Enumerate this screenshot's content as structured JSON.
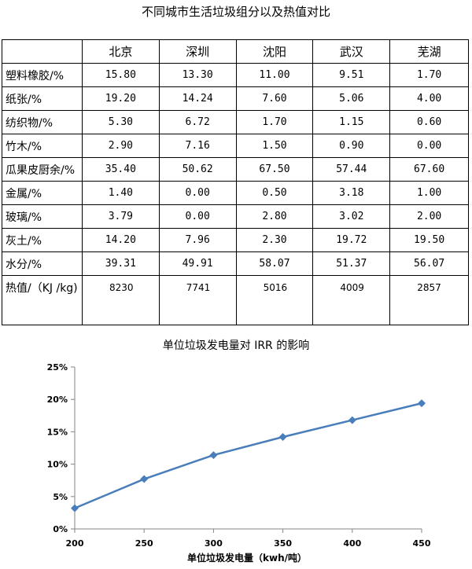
{
  "table": {
    "title": "不同城市生活垃圾组分以及热值对比",
    "headers": [
      "",
      "北京",
      "深圳",
      "沈阳",
      "武汉",
      "芜湖"
    ],
    "rows": [
      {
        "label": "塑料橡胶/%",
        "values": [
          "15.80",
          "13.30",
          "11.00",
          "9.51",
          "1.70"
        ]
      },
      {
        "label": "纸张/%",
        "values": [
          "19.20",
          "14.24",
          "7.60",
          "5.06",
          "4.00"
        ]
      },
      {
        "label": "纺织物/%",
        "values": [
          "5.30",
          "6.72",
          "1.70",
          "1.15",
          "0.60"
        ]
      },
      {
        "label": "竹木/%",
        "values": [
          "2.90",
          "7.16",
          "1.50",
          "0.90",
          "0.00"
        ]
      },
      {
        "label": "瓜果皮厨余/%",
        "values": [
          "35.40",
          "50.62",
          "67.50",
          "57.44",
          "67.60"
        ]
      },
      {
        "label": "金属/%",
        "values": [
          "1.40",
          "0.00",
          "0.50",
          "3.18",
          "1.00"
        ]
      },
      {
        "label": "玻璃/%",
        "values": [
          "3.79",
          "0.00",
          "2.80",
          "3.02",
          "2.00"
        ]
      },
      {
        "label": "灰土/%",
        "values": [
          "14.20",
          "7.96",
          "2.30",
          "19.72",
          "19.50"
        ]
      },
      {
        "label": "水分/%",
        "values": [
          "39.31",
          "49.91",
          "58.07",
          "51.37",
          "56.07"
        ]
      },
      {
        "label": "热值/（KJ /kg)",
        "values": [
          "8230",
          "7741",
          "5016",
          "4009",
          "2857"
        ]
      }
    ]
  },
  "chart_data": {
    "type": "line",
    "title": "单位垃圾发电量对 IRR 的影响",
    "xlabel": "单位垃圾发电量（kwh/吨）",
    "ylabel": "",
    "x": [
      200,
      250,
      300,
      350,
      400,
      450
    ],
    "xticks": [
      "200",
      "250",
      "300",
      "350",
      "400",
      "450"
    ],
    "yticks": [
      "0%",
      "5%",
      "10%",
      "15%",
      "20%",
      "25%"
    ],
    "xlim": [
      200,
      450
    ],
    "ylim": [
      0,
      25
    ],
    "series": [
      {
        "values": [
          3.2,
          7.7,
          11.4,
          14.2,
          16.8,
          19.4
        ]
      }
    ],
    "marker": "diamond",
    "line_color": "#4a7ebb",
    "grid": false
  }
}
